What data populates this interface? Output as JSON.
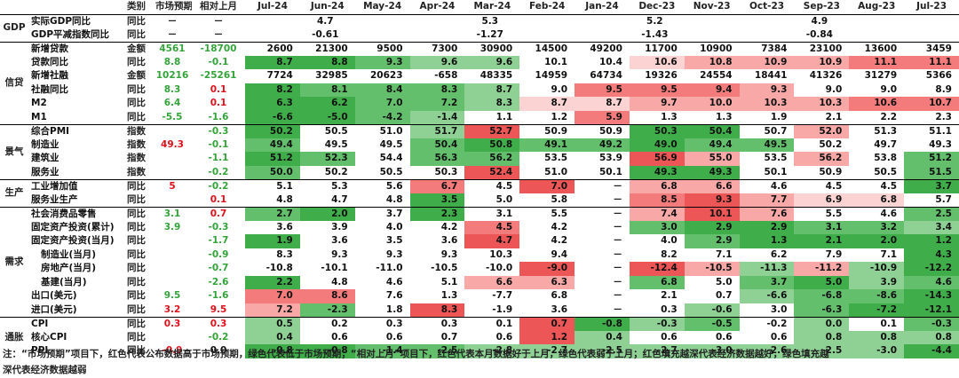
{
  "header": {
    "category": "类别",
    "forecast": "市场预期",
    "mom": "相对上月",
    "months": [
      "Jul-24",
      "Jun-24",
      "May-24",
      "Apr-24",
      "Mar-24",
      "Feb-24",
      "Jan-24",
      "Dec-23",
      "Nov-23",
      "Oct-23",
      "Sep-23",
      "Aug-23",
      "Jul-23"
    ]
  },
  "groups": [
    {
      "name": "GDP",
      "rows": [
        {
          "name": "实际GDP同比",
          "type": "同比",
          "forecast": "－",
          "mom": "－",
          "values": [
            "",
            "4.7",
            "",
            "",
            "5.3",
            "",
            "",
            "5.2",
            "",
            "",
            "4.9",
            "",
            ""
          ]
        },
        {
          "name": "GDP平减指数同比",
          "type": "同比",
          "forecast": "－",
          "mom": "－",
          "values": [
            "",
            "-0.61",
            "",
            "",
            "-1.27",
            "",
            "",
            "-1.43",
            "",
            "",
            "-0.84",
            "",
            ""
          ]
        }
      ]
    },
    {
      "name": "信贷",
      "rows": [
        {
          "name": "新增贷款",
          "type": "金额",
          "forecast": "4561",
          "mom": "-18700",
          "values": [
            "2600",
            "21300",
            "9500",
            "7300",
            "30900",
            "14500",
            "49200",
            "11700",
            "10900",
            "7384",
            "23100",
            "13600",
            "3459"
          ]
        },
        {
          "name": "贷款同比",
          "type": "同比",
          "forecast": "8.8",
          "mom": "-0.1",
          "values": [
            "8.7",
            "8.8",
            "9.3",
            "9.6",
            "9.6",
            "10.1",
            "10.4",
            "10.6",
            "10.8",
            "10.9",
            "10.9",
            "11.1",
            "11.1"
          ]
        },
        {
          "name": "新增社融",
          "type": "金额",
          "forecast": "10216",
          "mom": "-25261",
          "values": [
            "7724",
            "32985",
            "20623",
            "-658",
            "48335",
            "14959",
            "64734",
            "19326",
            "24554",
            "18441",
            "41326",
            "31279",
            "5366"
          ]
        },
        {
          "name": "社融同比",
          "type": "同比",
          "forecast": "8.3",
          "mom": "0.1",
          "values": [
            "8.2",
            "8.1",
            "8.4",
            "8.3",
            "8.7",
            "9.0",
            "9.5",
            "9.5",
            "9.4",
            "9.3",
            "9.0",
            "9.0",
            "8.9"
          ]
        },
        {
          "name": "M2",
          "type": "同比",
          "forecast": "6.4",
          "mom": "0.1",
          "values": [
            "6.3",
            "6.2",
            "7.0",
            "7.2",
            "8.3",
            "8.7",
            "8.7",
            "9.7",
            "10.0",
            "10.3",
            "10.3",
            "10.6",
            "10.7"
          ]
        },
        {
          "name": "M1",
          "type": "同比",
          "forecast": "-5.5",
          "mom": "-1.6",
          "values": [
            "-6.6",
            "-5.0",
            "-4.2",
            "-1.4",
            "1.1",
            "1.2",
            "5.9",
            "1.3",
            "1.3",
            "1.9",
            "2.1",
            "2.2",
            "2.3"
          ]
        }
      ]
    },
    {
      "name": "景气",
      "rows": [
        {
          "name": "综合PMI",
          "type": "指数",
          "forecast": "",
          "mom": "-0.3",
          "values": [
            "50.2",
            "50.5",
            "51.0",
            "51.7",
            "52.7",
            "50.9",
            "50.9",
            "50.3",
            "50.4",
            "50.7",
            "52.0",
            "51.3",
            "51.1"
          ]
        },
        {
          "name": "制造业",
          "type": "指数",
          "forecast": "49.3",
          "mom": "-0.1",
          "values": [
            "49.4",
            "49.5",
            "49.5",
            "50.4",
            "50.8",
            "49.1",
            "49.2",
            "49.0",
            "49.4",
            "49.5",
            "50.2",
            "49.7",
            "49.3"
          ]
        },
        {
          "name": "建筑业",
          "type": "指数",
          "forecast": "",
          "mom": "-1.1",
          "values": [
            "51.2",
            "52.3",
            "54.4",
            "56.3",
            "56.2",
            "53.5",
            "53.9",
            "56.9",
            "55.0",
            "53.5",
            "56.2",
            "53.8",
            "51.2"
          ]
        },
        {
          "name": "服务业",
          "type": "指数",
          "forecast": "",
          "mom": "-0.2",
          "values": [
            "50.0",
            "50.2",
            "50.5",
            "50.3",
            "52.4",
            "51.0",
            "50.1",
            "49.3",
            "49.3",
            "50.1",
            "50.9",
            "50.5",
            "51.5"
          ]
        }
      ]
    },
    {
      "name": "生产",
      "rows": [
        {
          "name": "工业增加值",
          "type": "同比",
          "forecast": "5",
          "mom": "-0.2",
          "values": [
            "5.1",
            "5.3",
            "5.6",
            "6.7",
            "4.5",
            "7.0",
            "－",
            "6.8",
            "6.6",
            "4.6",
            "4.5",
            "4.5",
            "3.7"
          ]
        },
        {
          "name": "服务业生产",
          "type": "同比",
          "forecast": "",
          "mom": "0.1",
          "values": [
            "4.8",
            "4.7",
            "4.8",
            "3.5",
            "5.0",
            "5.8",
            "－",
            "8.5",
            "9.3",
            "7.7",
            "6.9",
            "6.8",
            "5.7"
          ]
        }
      ]
    },
    {
      "name": "需求",
      "rows": [
        {
          "name": "社会消费品零售",
          "type": "同比",
          "forecast": "3.1",
          "mom": "0.7",
          "values": [
            "2.7",
            "2.0",
            "3.7",
            "2.3",
            "3.1",
            "5.5",
            "－",
            "7.4",
            "10.1",
            "7.6",
            "5.5",
            "4.6",
            "2.5"
          ]
        },
        {
          "name": "固定资产投资(累计)",
          "type": "同比",
          "forecast": "3.9",
          "mom": "-0.3",
          "values": [
            "3.6",
            "3.9",
            "4.0",
            "4.2",
            "4.5",
            "4.2",
            "－",
            "3.0",
            "2.9",
            "2.9",
            "3.1",
            "3.2",
            "3.4"
          ]
        },
        {
          "name": "固定资产投资(当月)",
          "type": "同比",
          "forecast": "",
          "mom": "-1.7",
          "values": [
            "1.9",
            "3.6",
            "3.5",
            "3.6",
            "4.7",
            "4.2",
            "－",
            "4.0",
            "2.9",
            "1.3",
            "2.1",
            "2.0",
            "1.2"
          ]
        },
        {
          "name": "制造业(当月)",
          "type": "同比",
          "forecast": "",
          "mom": "-0.9",
          "values": [
            "8.3",
            "9.3",
            "9.3",
            "9.3",
            "10.3",
            "9.4",
            "－",
            "8.2",
            "7.1",
            "6.2",
            "7.9",
            "7.1",
            "4.3"
          ],
          "sub": true
        },
        {
          "name": "房地产(当月)",
          "type": "同比",
          "forecast": "",
          "mom": "-0.7",
          "values": [
            "-10.8",
            "-10.1",
            "-11.0",
            "-10.5",
            "-10.0",
            "-9.0",
            "－",
            "-12.4",
            "-10.5",
            "-11.3",
            "-11.2",
            "-10.9",
            "-12.2"
          ],
          "sub": true
        },
        {
          "name": "基建(当月)",
          "type": "同比",
          "forecast": "",
          "mom": "-2.6",
          "values": [
            "2.2",
            "4.8",
            "4.6",
            "5.1",
            "6.6",
            "6.3",
            "－",
            "6.8",
            "5.0",
            "3.7",
            "5.0",
            "3.9",
            "4.6"
          ],
          "sub": true
        },
        {
          "name": "出口(美元)",
          "type": "同比",
          "forecast": "9.5",
          "mom": "-1.6",
          "values": [
            "7.0",
            "8.6",
            "7.6",
            "1.3",
            "-7.7",
            "6.8",
            "－",
            "2.1",
            "0.7",
            "-6.6",
            "-6.8",
            "-8.6",
            "-14.3"
          ]
        },
        {
          "name": "进口(美元)",
          "type": "同比",
          "forecast": "3.2",
          "mom": "9.5",
          "values": [
            "7.2",
            "-2.3",
            "1.8",
            "8.3",
            "-1.9",
            "3.6",
            "－",
            "0.3",
            "-0.6",
            "3.0",
            "-6.3",
            "-7.2",
            "-12.1"
          ]
        }
      ]
    },
    {
      "name": "通胀",
      "rows": [
        {
          "name": "CPI",
          "type": "同比",
          "forecast": "0.3",
          "mom": "0.3",
          "values": [
            "0.5",
            "0.2",
            "0.3",
            "0.3",
            "0.1",
            "0.7",
            "-0.8",
            "-0.3",
            "-0.5",
            "-0.2",
            "0.0",
            "0.1",
            "-0.3"
          ]
        },
        {
          "name": "核心CPI",
          "type": "同比",
          "forecast": "",
          "mom": "-0.2",
          "values": [
            "0.4",
            "0.6",
            "0.6",
            "0.7",
            "0.6",
            "1.2",
            "0.4",
            "0.6",
            "0.6",
            "0.6",
            "0.8",
            "0.8",
            "0.8"
          ]
        },
        {
          "name": "PPI",
          "type": "同比",
          "forecast": "-0.9",
          "mom": "0.0",
          "values": [
            "-0.8",
            "-0.8",
            "-1.4",
            "-2.5",
            "-2.8",
            "-2.7",
            "-2.5",
            "-2.7",
            "-3.0",
            "-2.6",
            "-2.5",
            "-3.0",
            "-4.4"
          ]
        }
      ]
    }
  ],
  "colors": {
    "red_text": "#e0101b",
    "green_text": "#34a33a",
    "black_text": "#111111"
  },
  "forecast_colors": {
    "gdp_forecast": "#111111"
  },
  "note_line1": "注：“市场预期”项目下，红色代表公布数据高于市场预期，绿色代表低于市场预期；“相对上月”项目下，红色代表本月数据好于上月，绿色代表弱于上月；红色填充越深代表经济数据越好，绿色填充越",
  "note_line2": "深代表经济数据越弱"
}
